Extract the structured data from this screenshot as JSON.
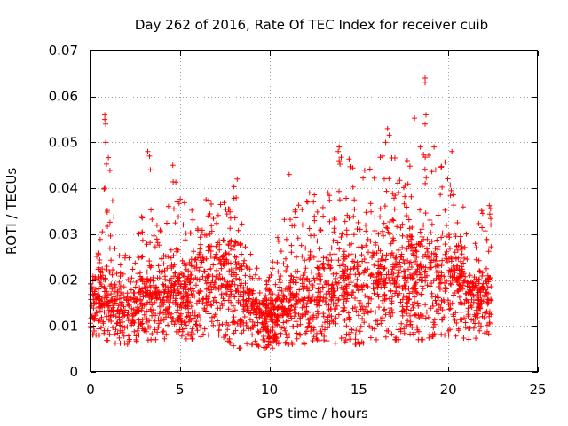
{
  "chart_data": {
    "type": "scatter",
    "title": "Day 262 of 2016, Rate Of TEC Index for receiver cuib",
    "xlabel": "GPS time / hours",
    "ylabel": "ROTI / TECUs",
    "xlim": [
      0,
      25
    ],
    "ylim": [
      0,
      0.07
    ],
    "x_ticks": [
      0,
      5,
      10,
      15,
      20,
      25
    ],
    "x_tick_labels": [
      "0",
      "5",
      "10",
      "15",
      "20",
      "25"
    ],
    "y_ticks": [
      0,
      0.01,
      0.02,
      0.03,
      0.04,
      0.05,
      0.06,
      0.07
    ],
    "y_tick_labels": [
      "0",
      "0.01",
      "0.02",
      "0.03",
      "0.04",
      "0.05",
      "0.06",
      "0.07"
    ],
    "grid": true,
    "marker": "+",
    "color": "#ff0000",
    "series": [
      {
        "name": "ROTI",
        "data_range_x": [
          0.0,
          22.4
        ],
        "envelope": [
          {
            "x": 0.5,
            "low": 0.008,
            "high": 0.026,
            "typical": 0.014
          },
          {
            "x": 0.8,
            "low": 0.007,
            "high": 0.056,
            "typical": 0.015
          },
          {
            "x": 1.5,
            "low": 0.006,
            "high": 0.027,
            "typical": 0.013
          },
          {
            "x": 2.5,
            "low": 0.006,
            "high": 0.024,
            "typical": 0.012
          },
          {
            "x": 3.3,
            "low": 0.007,
            "high": 0.048,
            "typical": 0.016
          },
          {
            "x": 4.0,
            "low": 0.007,
            "high": 0.032,
            "typical": 0.015
          },
          {
            "x": 4.6,
            "low": 0.008,
            "high": 0.045,
            "typical": 0.016
          },
          {
            "x": 5.5,
            "low": 0.007,
            "high": 0.035,
            "typical": 0.016
          },
          {
            "x": 6.5,
            "low": 0.008,
            "high": 0.038,
            "typical": 0.018
          },
          {
            "x": 7.3,
            "low": 0.008,
            "high": 0.037,
            "typical": 0.019
          },
          {
            "x": 8.2,
            "low": 0.005,
            "high": 0.042,
            "typical": 0.017
          },
          {
            "x": 9.0,
            "low": 0.006,
            "high": 0.025,
            "typical": 0.013
          },
          {
            "x": 10.0,
            "low": 0.005,
            "high": 0.023,
            "typical": 0.011
          },
          {
            "x": 11.0,
            "low": 0.006,
            "high": 0.04,
            "typical": 0.013
          },
          {
            "x": 12.0,
            "low": 0.006,
            "high": 0.04,
            "typical": 0.015
          },
          {
            "x": 13.0,
            "low": 0.007,
            "high": 0.038,
            "typical": 0.016
          },
          {
            "x": 13.9,
            "low": 0.006,
            "high": 0.05,
            "typical": 0.017
          },
          {
            "x": 15.0,
            "low": 0.006,
            "high": 0.044,
            "typical": 0.017
          },
          {
            "x": 16.0,
            "low": 0.007,
            "high": 0.045,
            "typical": 0.018
          },
          {
            "x": 16.6,
            "low": 0.007,
            "high": 0.053,
            "typical": 0.019
          },
          {
            "x": 17.5,
            "low": 0.007,
            "high": 0.048,
            "typical": 0.018
          },
          {
            "x": 18.7,
            "low": 0.007,
            "high": 0.064,
            "typical": 0.019
          },
          {
            "x": 19.3,
            "low": 0.008,
            "high": 0.045,
            "typical": 0.019
          },
          {
            "x": 20.2,
            "low": 0.008,
            "high": 0.048,
            "typical": 0.02
          },
          {
            "x": 21.2,
            "low": 0.007,
            "high": 0.03,
            "typical": 0.016
          },
          {
            "x": 22.2,
            "low": 0.008,
            "high": 0.038,
            "typical": 0.015
          }
        ],
        "spikes": [
          {
            "x": 0.8,
            "y": 0.056
          },
          {
            "x": 0.8,
            "y": 0.055
          },
          {
            "x": 0.85,
            "y": 0.054
          },
          {
            "x": 0.85,
            "y": 0.05
          },
          {
            "x": 0.8,
            "y": 0.04
          },
          {
            "x": 3.2,
            "y": 0.048
          },
          {
            "x": 3.3,
            "y": 0.047
          },
          {
            "x": 4.6,
            "y": 0.045
          },
          {
            "x": 13.9,
            "y": 0.049
          },
          {
            "x": 13.9,
            "y": 0.046
          },
          {
            "x": 16.6,
            "y": 0.053
          },
          {
            "x": 16.5,
            "y": 0.05
          },
          {
            "x": 18.7,
            "y": 0.064
          },
          {
            "x": 18.7,
            "y": 0.063
          },
          {
            "x": 18.75,
            "y": 0.056
          },
          {
            "x": 18.7,
            "y": 0.054
          },
          {
            "x": 19.2,
            "y": 0.049
          },
          {
            "x": 20.2,
            "y": 0.048
          },
          {
            "x": 8.2,
            "y": 0.042
          },
          {
            "x": 11.1,
            "y": 0.043
          }
        ]
      }
    ]
  }
}
